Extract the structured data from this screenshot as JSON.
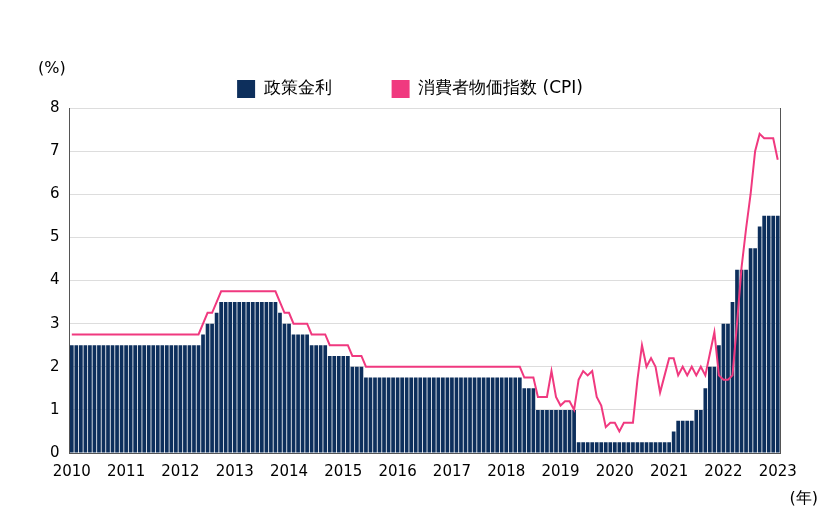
{
  "chart_data": {
    "type": "bar",
    "ylabel": "(%)",
    "xlabel": "(年)",
    "categories": [
      "2010",
      null,
      null,
      null,
      null,
      null,
      null,
      null,
      null,
      null,
      null,
      null,
      "2011",
      null,
      null,
      null,
      null,
      null,
      null,
      null,
      null,
      null,
      null,
      null,
      "2012",
      null,
      null,
      null,
      null,
      null,
      null,
      null,
      null,
      null,
      null,
      null,
      "2013",
      null,
      null,
      null,
      null,
      null,
      null,
      null,
      null,
      null,
      null,
      null,
      "2014",
      null,
      null,
      null,
      null,
      null,
      null,
      null,
      null,
      null,
      null,
      null,
      "2015",
      null,
      null,
      null,
      null,
      null,
      null,
      null,
      null,
      null,
      null,
      null,
      "2016",
      null,
      null,
      null,
      null,
      null,
      null,
      null,
      null,
      null,
      null,
      null,
      "2017",
      null,
      null,
      null,
      null,
      null,
      null,
      null,
      null,
      null,
      null,
      null,
      "2018",
      null,
      null,
      null,
      null,
      null,
      null,
      null,
      null,
      null,
      null,
      null,
      "2019",
      null,
      null,
      null,
      null,
      null,
      null,
      null,
      null,
      null,
      null,
      null,
      "2020",
      null,
      null,
      null,
      null,
      null,
      null,
      null,
      null,
      null,
      null,
      null,
      "2021",
      null,
      null,
      null,
      null,
      null,
      null,
      null,
      null,
      null,
      null,
      null,
      "2022",
      null,
      null,
      null,
      null,
      null,
      null,
      null,
      null,
      null,
      null,
      null,
      "2023"
    ],
    "series": [
      {
        "name": "政策金利",
        "type": "bar",
        "color": "#0d2f5c",
        "values": [
          2.5,
          2.5,
          2.5,
          2.5,
          2.5,
          2.5,
          2.5,
          2.5,
          2.5,
          2.5,
          2.5,
          2.5,
          2.5,
          2.5,
          2.5,
          2.5,
          2.5,
          2.5,
          2.5,
          2.5,
          2.5,
          2.5,
          2.5,
          2.5,
          2.5,
          2.5,
          2.5,
          2.5,
          2.5,
          2.75,
          3,
          3,
          3.25,
          3.5,
          3.5,
          3.5,
          3.5,
          3.5,
          3.5,
          3.5,
          3.5,
          3.5,
          3.5,
          3.5,
          3.5,
          3.5,
          3.25,
          3,
          3,
          2.75,
          2.75,
          2.75,
          2.75,
          2.5,
          2.5,
          2.5,
          2.5,
          2.25,
          2.25,
          2.25,
          2.25,
          2.25,
          2,
          2,
          2,
          1.75,
          1.75,
          1.75,
          1.75,
          1.75,
          1.75,
          1.75,
          1.75,
          1.75,
          1.75,
          1.75,
          1.75,
          1.75,
          1.75,
          1.75,
          1.75,
          1.75,
          1.75,
          1.75,
          1.75,
          1.75,
          1.75,
          1.75,
          1.75,
          1.75,
          1.75,
          1.75,
          1.75,
          1.75,
          1.75,
          1.75,
          1.75,
          1.75,
          1.75,
          1.75,
          1.5,
          1.5,
          1.5,
          1,
          1,
          1,
          1,
          1,
          1,
          1,
          1,
          1,
          0.25,
          0.25,
          0.25,
          0.25,
          0.25,
          0.25,
          0.25,
          0.25,
          0.25,
          0.25,
          0.25,
          0.25,
          0.25,
          0.25,
          0.25,
          0.25,
          0.25,
          0.25,
          0.25,
          0.25,
          0.25,
          0.5,
          0.75,
          0.75,
          0.75,
          0.75,
          1,
          1,
          1.5,
          2,
          2,
          2.5,
          3,
          3,
          3.5,
          4.25,
          4.25,
          4.25,
          4.75,
          4.75,
          5.25,
          5.5,
          5.5,
          5.5,
          5.5
        ]
      },
      {
        "name": "消費者物価指数 (CPI)",
        "type": "line",
        "color": "#f0397f",
        "values": [
          2.75,
          2.75,
          2.75,
          2.75,
          2.75,
          2.75,
          2.75,
          2.75,
          2.75,
          2.75,
          2.75,
          2.75,
          2.75,
          2.75,
          2.75,
          2.75,
          2.75,
          2.75,
          2.75,
          2.75,
          2.75,
          2.75,
          2.75,
          2.75,
          2.75,
          2.75,
          2.75,
          2.75,
          2.75,
          3,
          3.25,
          3.25,
          3.5,
          3.75,
          3.75,
          3.75,
          3.75,
          3.75,
          3.75,
          3.75,
          3.75,
          3.75,
          3.75,
          3.75,
          3.75,
          3.75,
          3.5,
          3.25,
          3.25,
          3,
          3,
          3,
          3,
          2.75,
          2.75,
          2.75,
          2.75,
          2.5,
          2.5,
          2.5,
          2.5,
          2.5,
          2.25,
          2.25,
          2.25,
          2,
          2,
          2,
          2,
          2,
          2,
          2,
          2,
          2,
          2,
          2,
          2,
          2,
          2,
          2,
          2,
          2,
          2,
          2,
          2,
          2,
          2,
          2,
          2,
          2,
          2,
          2,
          2,
          2,
          2,
          2,
          2,
          2,
          2,
          2,
          1.75,
          1.75,
          1.75,
          1.3,
          1.3,
          1.3,
          1.9,
          1.3,
          1.1,
          1.2,
          1.2,
          1,
          1.7,
          1.9,
          1.8,
          1.9,
          1.3,
          1.1,
          0.6,
          0.7,
          0.7,
          0.5,
          0.7,
          0.7,
          0.7,
          1.7,
          2.5,
          2,
          2.2,
          2,
          1.4,
          1.8,
          2.2,
          2.2,
          1.8,
          2,
          1.8,
          2,
          1.8,
          2,
          1.8,
          2.3,
          2.8,
          1.8,
          1.7,
          1.7,
          1.8,
          3,
          4.3,
          5.2,
          6,
          7,
          7.4,
          7.3,
          7.3,
          7.3,
          6.8
        ]
      }
    ],
    "ylim": [
      0,
      8
    ],
    "yticks": [
      0,
      1,
      2,
      3,
      4,
      5,
      6,
      7,
      8
    ],
    "grid": true,
    "legend": "top"
  }
}
